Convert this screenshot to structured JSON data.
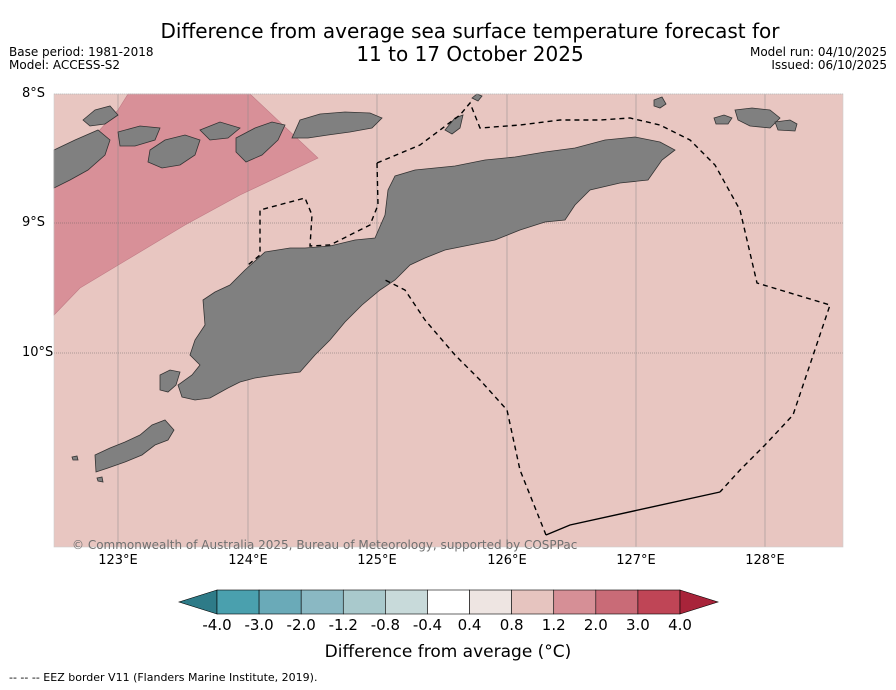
{
  "title": {
    "line1": "Difference from average sea surface temperature forecast for",
    "line2": "11 to 17 October 2025"
  },
  "meta_left": {
    "base_period": "Base period: 1981-2018",
    "model": "Model: ACCESS-S2"
  },
  "meta_right": {
    "model_run": "Model run: 04/10/2025",
    "issued": "Issued: 06/10/2025"
  },
  "map": {
    "lat_labels": [
      "8°S",
      "9°S",
      "10°S"
    ],
    "lon_labels": [
      "123°E",
      "124°E",
      "125°E",
      "126°E",
      "127°E",
      "128°E"
    ],
    "copyright": "© Commonwealth of Australia 2025, Bureau of Meteorology, supported by COSPPac",
    "colors": {
      "ocean_dominant": "#e8c6c1",
      "ocean_warm": "#d89098",
      "land": "#808080",
      "eez_line": "#000000"
    }
  },
  "colorbar": {
    "title": "Difference from average (°C)",
    "tick_labels": [
      "-4.0",
      "-3.0",
      "-2.0",
      "-1.2",
      "-0.8",
      "-0.4",
      "0.4",
      "0.8",
      "1.2",
      "2.0",
      "3.0",
      "4.0"
    ],
    "colors": [
      "#2e7b88",
      "#4aa0ae",
      "#6aaab8",
      "#8ab8c3",
      "#a9c9cc",
      "#c8dada",
      "#ffffff",
      "#eee5e2",
      "#e6c4bf",
      "#d68f96",
      "#c96b77",
      "#bf4556",
      "#a8243a"
    ]
  },
  "legend_footer": "-- -- -- EEZ border V11 (Flanders Marine Institute, 2019)."
}
